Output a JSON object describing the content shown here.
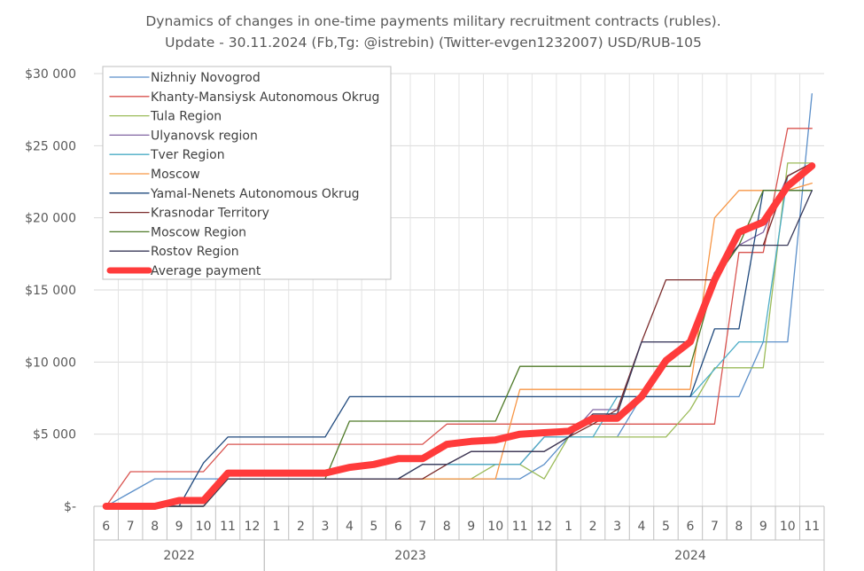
{
  "chart_data": {
    "type": "line",
    "title_lines": [
      "Dynamics of changes in one-time payments military recruitment contracts (rubles).",
      "Update - 30.11.2024 (Fb,Tg: @istrebin) (Twitter-evgen1232007) USD/RUB-105"
    ],
    "months": [
      "6",
      "7",
      "8",
      "9",
      "10",
      "11",
      "12",
      "1",
      "2",
      "3",
      "4",
      "5",
      "6",
      "7",
      "8",
      "9",
      "10",
      "11",
      "12",
      "1",
      "2",
      "3",
      "4",
      "5",
      "6",
      "7",
      "8",
      "9",
      "10",
      "11"
    ],
    "years": [
      {
        "label": "2022",
        "from": 0,
        "to": 6
      },
      {
        "label": "2023",
        "from": 7,
        "to": 18
      },
      {
        "label": "2024",
        "from": 19,
        "to": 29
      }
    ],
    "y_ticks": [
      {
        "value": 0,
        "label": "$-"
      },
      {
        "value": 5000,
        "label": "$5 000"
      },
      {
        "value": 10000,
        "label": "$10 000"
      },
      {
        "value": 15000,
        "label": "$15 000"
      },
      {
        "value": 20000,
        "label": "$20 000"
      },
      {
        "value": 25000,
        "label": "$25 000"
      },
      {
        "value": 30000,
        "label": "$30 000"
      }
    ],
    "ylim": [
      0,
      30000
    ],
    "grid": true,
    "legend_position": "top-left",
    "series": [
      {
        "name": "Nizhniy Novogrod",
        "color": "#5b8fc9",
        "values": [
          0,
          950,
          1900,
          1900,
          1900,
          1900,
          1900,
          1900,
          1900,
          1900,
          1900,
          1900,
          1900,
          1900,
          1900,
          1900,
          1900,
          1900,
          2900,
          4800,
          4800,
          4800,
          7600,
          7600,
          7600,
          7600,
          7600,
          11400,
          11400,
          28600
        ]
      },
      {
        "name": "Khanty-Mansiysk Autonomous Okrug",
        "color": "#d9534f",
        "values": [
          0,
          2400,
          2400,
          2400,
          2400,
          4300,
          4300,
          4300,
          4300,
          4300,
          4300,
          4300,
          4300,
          4300,
          5700,
          5700,
          5700,
          5700,
          5700,
          5700,
          5700,
          5700,
          5700,
          5700,
          5700,
          5700,
          17600,
          17600,
          26200,
          26200
        ]
      },
      {
        "name": "Tula Region",
        "color": "#9bbb59",
        "values": [
          0,
          0,
          0,
          0,
          0,
          1900,
          1900,
          1900,
          1900,
          1900,
          1900,
          1900,
          1900,
          1900,
          1900,
          1900,
          2900,
          2900,
          1900,
          4800,
          4800,
          4800,
          4800,
          4800,
          6700,
          9600,
          9600,
          9600,
          23800,
          23800
        ]
      },
      {
        "name": "Ulyanovsk region",
        "color": "#8064a2",
        "values": [
          0,
          0,
          0,
          0,
          0,
          1900,
          1900,
          1900,
          1900,
          1900,
          1900,
          1900,
          1900,
          2900,
          2900,
          2900,
          2900,
          2900,
          4800,
          4800,
          6700,
          6700,
          11400,
          11400,
          11400,
          16200,
          18100,
          19000,
          22900,
          23800
        ]
      },
      {
        "name": "Tver Region",
        "color": "#4bacc6",
        "values": [
          0,
          0,
          0,
          0,
          0,
          1900,
          1900,
          1900,
          1900,
          1900,
          1900,
          1900,
          1900,
          2900,
          2900,
          2900,
          2900,
          2900,
          4800,
          4800,
          4800,
          7600,
          7600,
          7600,
          7600,
          9500,
          11400,
          11400,
          22900,
          23800
        ]
      },
      {
        "name": "Moscow",
        "color": "#f79646",
        "values": [
          0,
          0,
          0,
          0,
          0,
          1900,
          1900,
          1900,
          1900,
          1900,
          1900,
          1900,
          1900,
          1900,
          1900,
          1900,
          1900,
          8100,
          8100,
          8100,
          8100,
          8100,
          8100,
          8100,
          8100,
          20000,
          21900,
          21900,
          21900,
          22400
        ]
      },
      {
        "name": "Yamal-Nenets Autonomous Okrug",
        "color": "#1f497d",
        "values": [
          0,
          0,
          0,
          0,
          3000,
          4800,
          4800,
          4800,
          4800,
          4800,
          7600,
          7600,
          7600,
          7600,
          7600,
          7600,
          7600,
          7600,
          7600,
          7600,
          7600,
          7600,
          7600,
          7600,
          7600,
          12300,
          12300,
          21900,
          21900,
          21900
        ]
      },
      {
        "name": "Krasnodar Territory",
        "color": "#7b2c2c",
        "values": [
          0,
          0,
          0,
          0,
          0,
          1900,
          1900,
          1900,
          1900,
          1900,
          1900,
          1900,
          1900,
          1900,
          2900,
          3800,
          3800,
          3800,
          3800,
          4800,
          5700,
          6700,
          11400,
          15700,
          15700,
          15700,
          18100,
          18100,
          22900,
          23800
        ]
      },
      {
        "name": "Moscow Region",
        "color": "#4f7a28",
        "values": [
          0,
          0,
          0,
          0,
          0,
          1900,
          1900,
          1900,
          1900,
          1900,
          5900,
          5900,
          5900,
          5900,
          5900,
          5900,
          5900,
          9700,
          9700,
          9700,
          9700,
          9700,
          9700,
          9700,
          9700,
          15700,
          18100,
          21900,
          21900,
          21900
        ]
      },
      {
        "name": "Rostov Region",
        "color": "#3a3a5a",
        "values": [
          0,
          0,
          0,
          0,
          0,
          1900,
          1900,
          1900,
          1900,
          1900,
          1900,
          1900,
          1900,
          2900,
          2900,
          3800,
          3800,
          3800,
          3800,
          4800,
          6400,
          6400,
          11400,
          11400,
          11400,
          16200,
          18100,
          18100,
          18100,
          21900
        ]
      },
      {
        "name": "Average payment",
        "color": "#ff3b3b",
        "values": [
          0,
          0,
          0,
          400,
          400,
          2300,
          2300,
          2300,
          2300,
          2300,
          2700,
          2900,
          3300,
          3300,
          4300,
          4500,
          4600,
          5000,
          5100,
          5200,
          6100,
          6100,
          7600,
          10100,
          11400,
          15700,
          19000,
          19700,
          22200,
          23600
        ]
      }
    ]
  }
}
